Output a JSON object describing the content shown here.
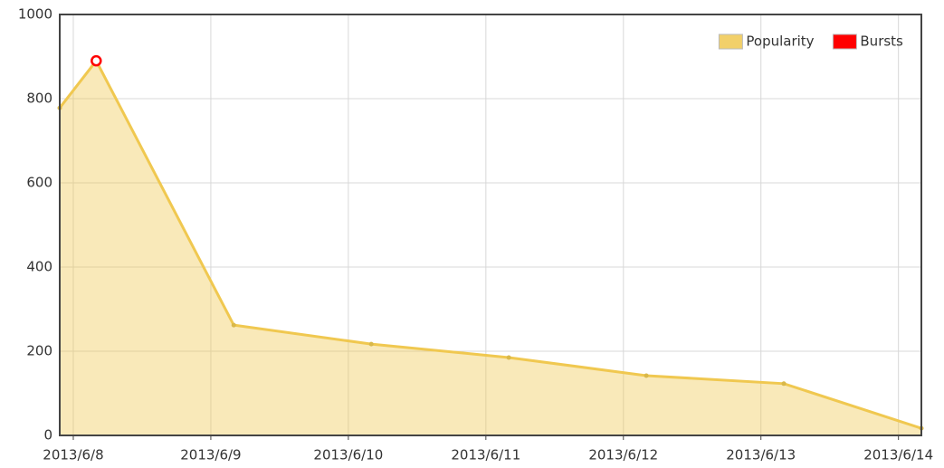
{
  "chart_data": {
    "type": "area",
    "x": [
      "2013-06-07T21:38",
      "2013-06-08T04:00",
      "2013-06-09T04:00",
      "2013-06-10T04:00",
      "2013-06-11T04:00",
      "2013-06-12T04:00",
      "2013-06-13T04:00",
      "2013-06-14T04:00"
    ],
    "series": [
      {
        "name": "Popularity",
        "color": "#f0c850",
        "values": [
          778,
          890,
          262,
          217,
          185,
          142,
          123,
          17
        ]
      },
      {
        "name": "Bursts",
        "color": "#ff0000",
        "values": [
          null,
          890,
          null,
          null,
          null,
          null,
          null,
          null
        ]
      }
    ],
    "xlim": [
      "2013-06-07T21:38",
      "2013-06-14T04:00"
    ],
    "xticks": [
      {
        "value": "2013-06-08T00:00",
        "label": "2013/6/8"
      },
      {
        "value": "2013-06-09T00:00",
        "label": "2013/6/9"
      },
      {
        "value": "2013-06-10T00:00",
        "label": "2013/6/10"
      },
      {
        "value": "2013-06-11T00:00",
        "label": "2013/6/11"
      },
      {
        "value": "2013-06-12T00:00",
        "label": "2013/6/12"
      },
      {
        "value": "2013-06-13T00:00",
        "label": "2013/6/13"
      },
      {
        "value": "2013-06-14T00:00",
        "label": "2013/6/14"
      }
    ],
    "ylim": [
      0,
      1000
    ],
    "yticks": [
      0,
      200,
      400,
      600,
      800,
      1000
    ],
    "grid": true,
    "legend": "top-right"
  }
}
